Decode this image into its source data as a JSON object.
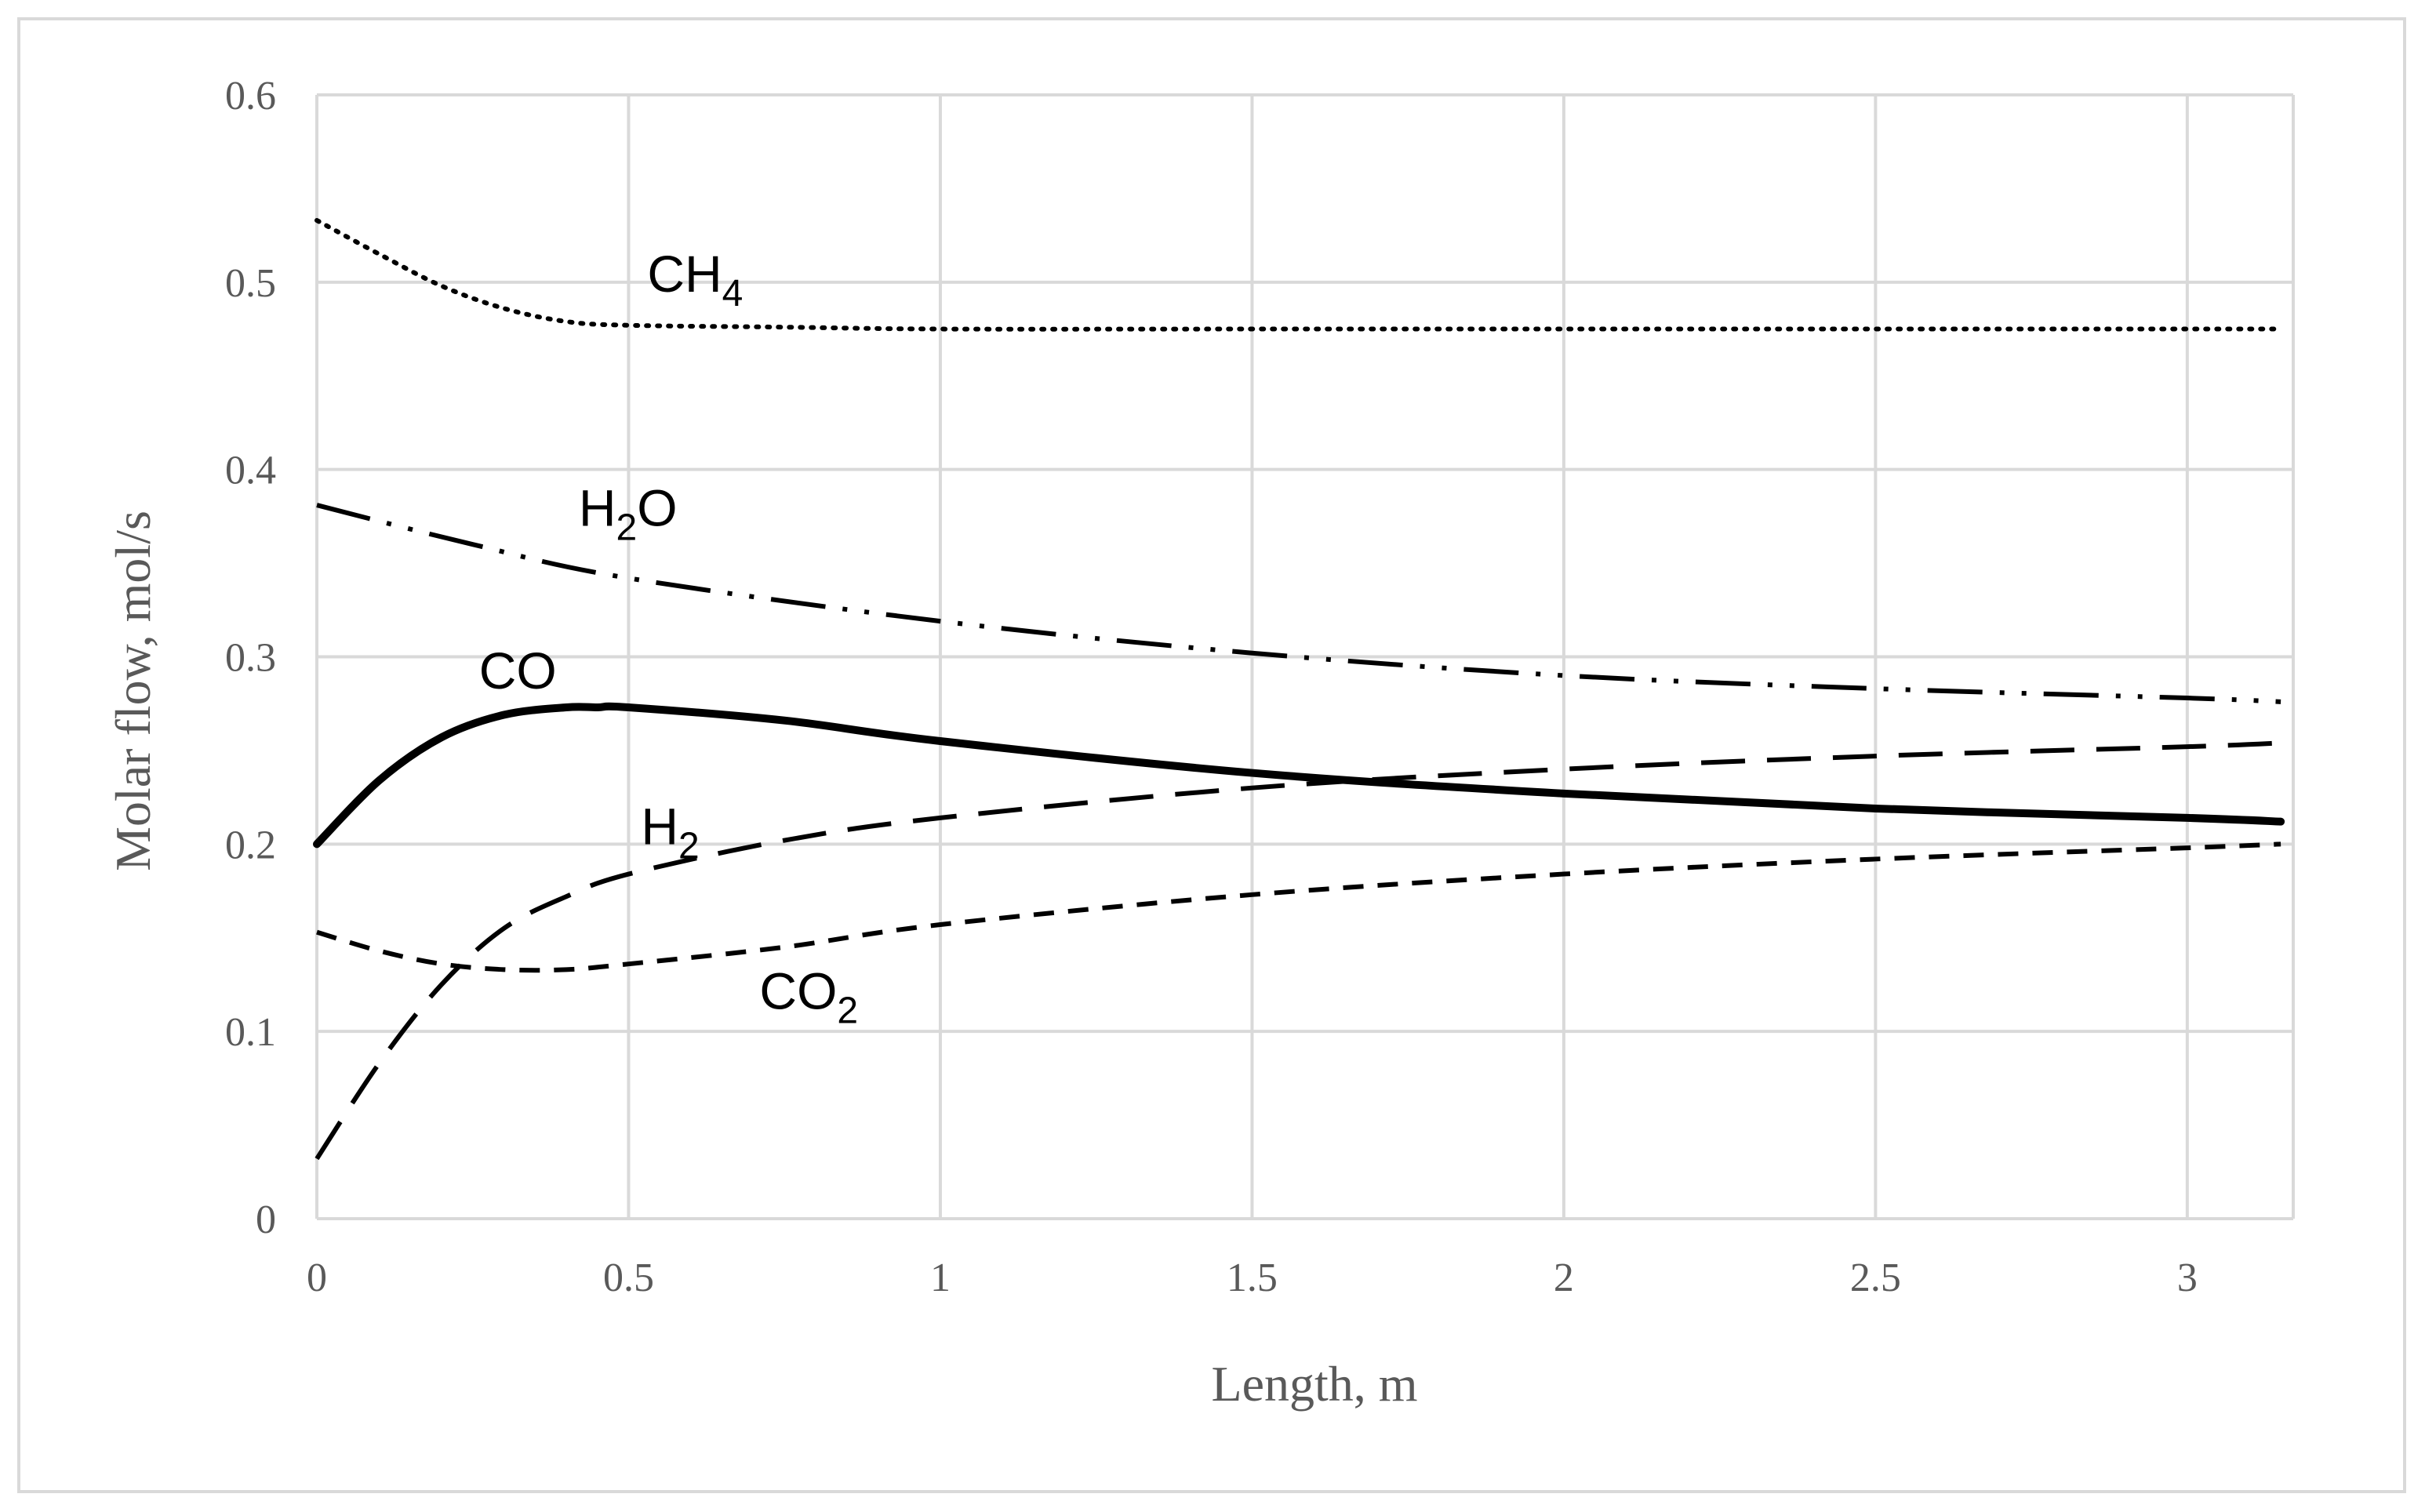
{
  "chart_data": {
    "type": "line",
    "title": "",
    "xlabel": "Length, m",
    "ylabel": "Molar flow, mol/s",
    "xlim": [
      0,
      3.17
    ],
    "ylim": [
      0,
      0.6
    ],
    "grid": true,
    "legend": "inline labels",
    "x_ticks": [
      0,
      0.5,
      1,
      1.5,
      2,
      2.5,
      3
    ],
    "x_tick_labels": [
      "0",
      "0.5",
      "1",
      "1.5",
      "2",
      "2.5",
      "3"
    ],
    "y_ticks": [
      0,
      0.1,
      0.2,
      0.3,
      0.4,
      0.5,
      0.6
    ],
    "y_tick_labels": [
      "0",
      "0.1",
      "0.2",
      "0.3",
      "0.4",
      "0.5",
      "0.6"
    ],
    "series": [
      {
        "name": "CH4",
        "label_main": "CH",
        "label_sub": "4",
        "style": "dotted",
        "x": [
          0,
          0.1,
          0.2,
          0.3,
          0.4,
          0.5,
          0.75,
          1,
          1.5,
          2,
          2.5,
          3,
          3.15
        ],
        "y": [
          0.533,
          0.515,
          0.498,
          0.486,
          0.479,
          0.477,
          0.476,
          0.475,
          0.475,
          0.475,
          0.475,
          0.475,
          0.475
        ]
      },
      {
        "name": "H2O",
        "label_main": "H",
        "label_sub": "2",
        "label_tail": "O",
        "style": "dash-dot-dot",
        "x": [
          0,
          0.25,
          0.5,
          1,
          1.5,
          2,
          2.5,
          3,
          3.15
        ],
        "y": [
          0.381,
          0.36,
          0.342,
          0.319,
          0.302,
          0.29,
          0.283,
          0.278,
          0.276
        ]
      },
      {
        "name": "CO",
        "label_main": "CO",
        "style": "solid",
        "x": [
          0,
          0.1,
          0.2,
          0.3,
          0.4,
          0.45,
          0.5,
          0.75,
          1,
          1.5,
          2,
          2.5,
          3,
          3.15
        ],
        "y": [
          0.2,
          0.234,
          0.257,
          0.269,
          0.273,
          0.273,
          0.273,
          0.266,
          0.255,
          0.238,
          0.227,
          0.219,
          0.214,
          0.212
        ]
      },
      {
        "name": "H2",
        "label_main": "H",
        "label_sub": "2",
        "style": "long-dash",
        "x": [
          0,
          0.1,
          0.2,
          0.3,
          0.4,
          0.5,
          0.75,
          1,
          1.5,
          2,
          2.5,
          3,
          3.15
        ],
        "y": [
          0.032,
          0.083,
          0.125,
          0.155,
          0.172,
          0.184,
          0.202,
          0.214,
          0.23,
          0.24,
          0.247,
          0.252,
          0.254
        ]
      },
      {
        "name": "CO2",
        "label_main": "CO",
        "label_sub": "2",
        "style": "short-dash",
        "x": [
          0,
          0.1,
          0.2,
          0.3,
          0.4,
          0.5,
          0.75,
          1,
          1.5,
          2,
          2.5,
          3,
          3.15
        ],
        "y": [
          0.153,
          0.143,
          0.136,
          0.133,
          0.133,
          0.136,
          0.145,
          0.157,
          0.173,
          0.184,
          0.192,
          0.198,
          0.2
        ]
      }
    ]
  }
}
